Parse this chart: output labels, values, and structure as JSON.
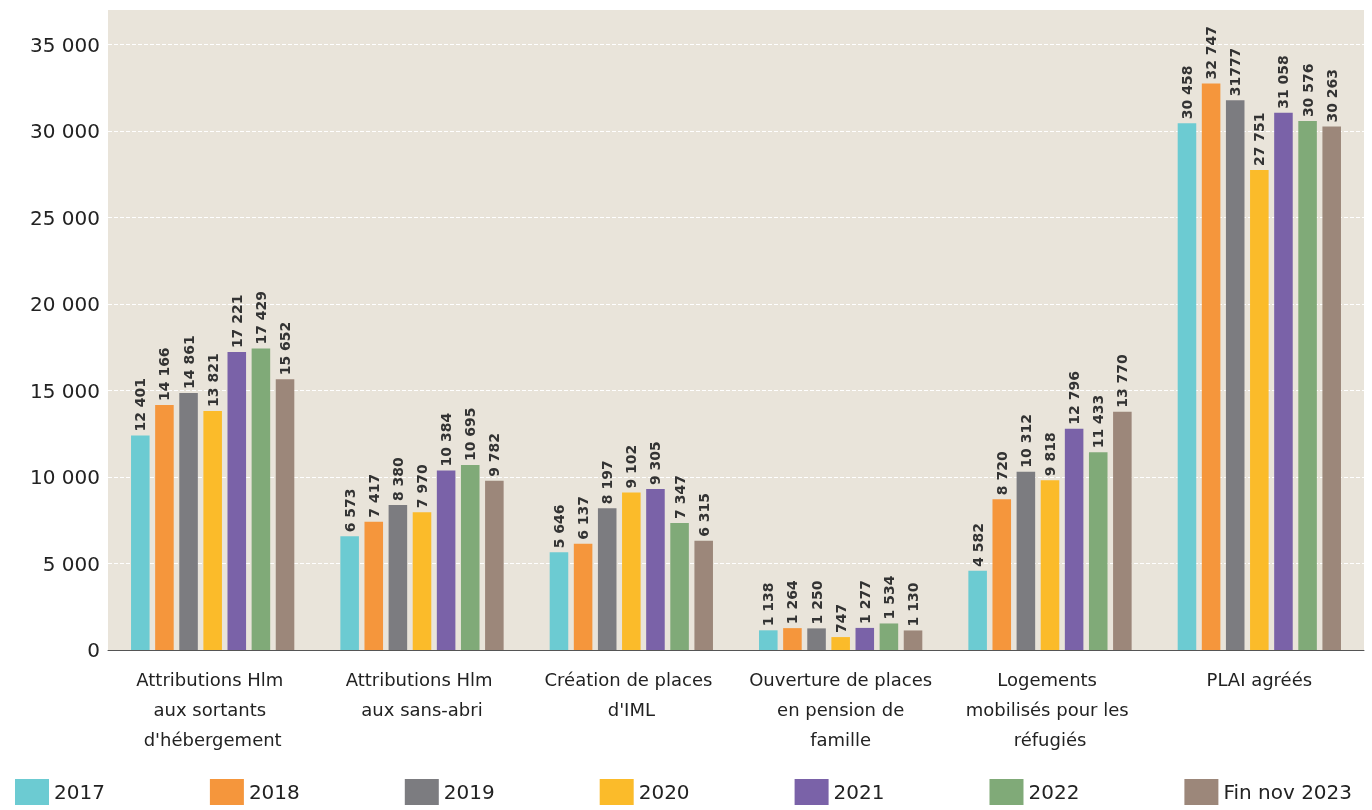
{
  "chart_data": {
    "type": "bar",
    "categories": [
      "Attributions Hlm aux sortants d'hébergement",
      "Attributions Hlm aux sans-abri",
      "Création de places d'IML",
      "Ouverture de places en pension de famille",
      "Logements mobilisés pour les réfugiés",
      "PLAI agréés"
    ],
    "series": [
      {
        "name": "2017",
        "color": "#6ccbd2",
        "values": [
          12401,
          6573,
          5646,
          1138,
          4582,
          30458
        ],
        "value_labels": [
          "12 401",
          "6 573",
          "5 646",
          "1 138",
          "4 582",
          "30 458"
        ]
      },
      {
        "name": "2018",
        "color": "#f5963c",
        "values": [
          14166,
          7417,
          6137,
          1264,
          8720,
          32747
        ],
        "value_labels": [
          "14 166",
          "7 417",
          "6 137",
          "1 264",
          "8 720",
          "32 747"
        ]
      },
      {
        "name": "2019",
        "color": "#7c7c80",
        "values": [
          14861,
          8380,
          8197,
          1250,
          10312,
          31777
        ],
        "value_labels": [
          "14 861",
          "8 380",
          "8 197",
          "1 250",
          "10 312",
          "31777"
        ]
      },
      {
        "name": "2020",
        "color": "#fbbb2a",
        "values": [
          13821,
          7970,
          9102,
          747,
          9818,
          27751
        ],
        "value_labels": [
          "13 821",
          "7 970",
          "9 102",
          "747",
          "9 818",
          "27 751"
        ]
      },
      {
        "name": "2021",
        "color": "#7a62a8",
        "values": [
          17221,
          10384,
          9305,
          1277,
          12796,
          31058
        ],
        "value_labels": [
          "17 221",
          "10 384",
          "9 305",
          "1 277",
          "12 796",
          "31 058"
        ]
      },
      {
        "name": "2022",
        "color": "#80aa78",
        "values": [
          17429,
          10695,
          7347,
          1534,
          11433,
          30576
        ],
        "value_labels": [
          "17 429",
          "10 695",
          "7 347",
          "1 534",
          "11 433",
          "30 576"
        ]
      },
      {
        "name": "Fin nov 2023",
        "color": "#9c877a",
        "values": [
          15652,
          9782,
          6315,
          1130,
          13770,
          30263
        ],
        "value_labels": [
          "15 652",
          "9 782",
          "6 315",
          "1 130",
          "13 770",
          "30 263"
        ]
      }
    ],
    "ylim": [
      0,
      37000
    ],
    "yticks": [
      0,
      {
        "value": 5000,
        "label": "5 000"
      },
      {
        "value": 10000,
        "label": "10 000"
      },
      {
        "value": 15000,
        "label": "15 000"
      },
      {
        "value": 20000,
        "label": "20 000"
      },
      {
        "value": 25000,
        "label": "25 000"
      },
      {
        "value": 30000,
        "label": "30 000"
      },
      {
        "value": 35000,
        "label": "35 000"
      }
    ],
    "grid": "y",
    "legend": "bottom"
  }
}
